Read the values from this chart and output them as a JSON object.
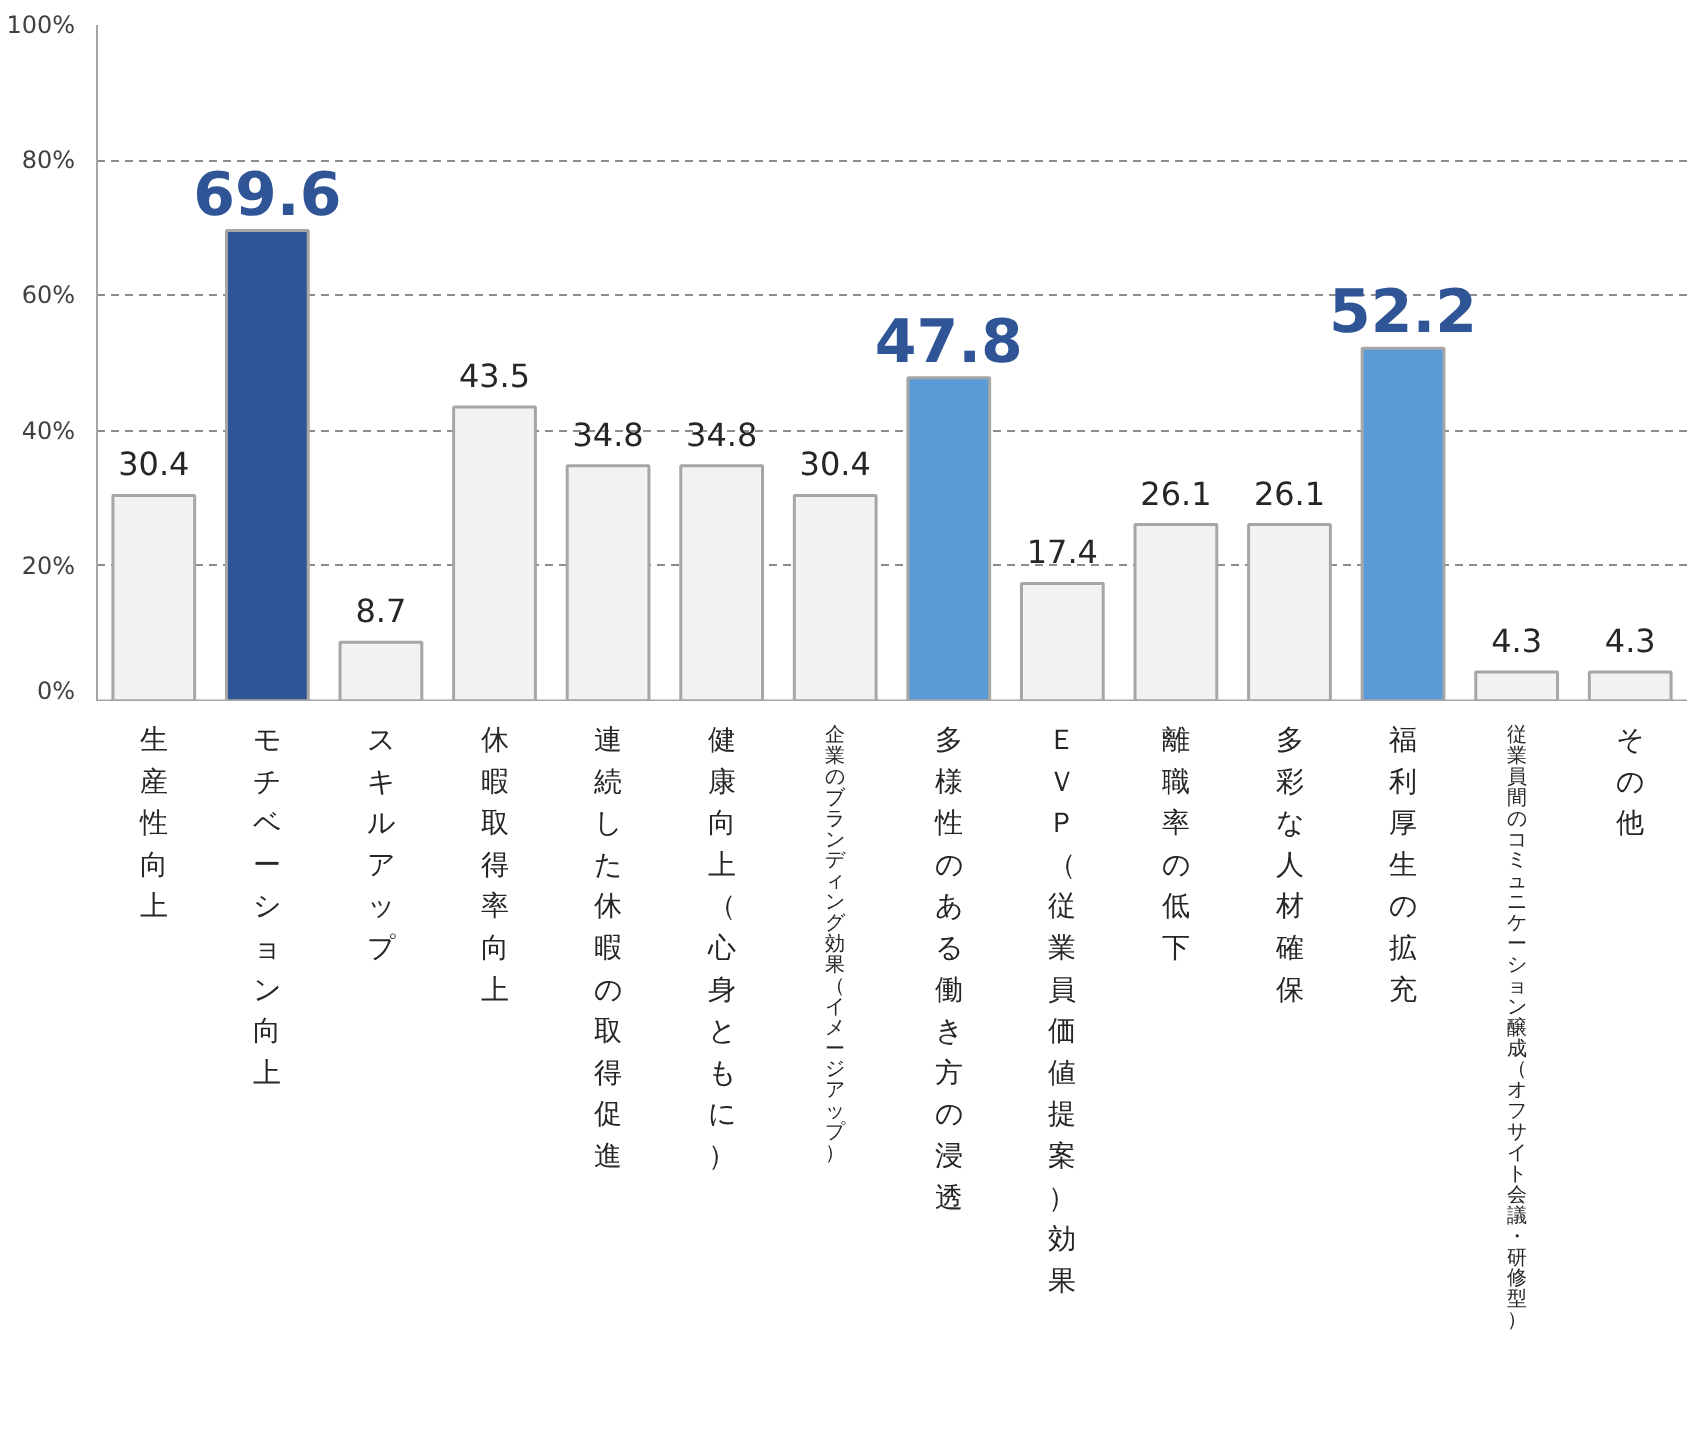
{
  "chart_data": {
    "type": "bar",
    "categories": [
      "生産性向上",
      "モチベーション向上",
      "スキルアップ",
      "休暇取得率向上",
      "連続した休暇の取得促進",
      "健康向上（心身ともに）",
      "企業のブランディング効果（イメージアップ）",
      "多様性のある働き方の浸透",
      "ＥＶＰ（従業員価値提案）効果",
      "離職率の低下",
      "多彩な人材確保",
      "福利厚生の拡充",
      "従業員間のコミュニケーション醸成（オフサイト会議・研修型）",
      "その他"
    ],
    "values": [
      30.4,
      69.6,
      8.7,
      43.5,
      34.8,
      34.8,
      30.4,
      47.8,
      17.4,
      26.1,
      26.1,
      52.2,
      4.3,
      4.3
    ],
    "colors": [
      "#f2f2f2",
      "#2f5597",
      "#f2f2f2",
      "#f2f2f2",
      "#f2f2f2",
      "#f2f2f2",
      "#f2f2f2",
      "#5b9bd5",
      "#f2f2f2",
      "#f2f2f2",
      "#f2f2f2",
      "#5b9bd5",
      "#f2f2f2",
      "#f2f2f2"
    ],
    "ylim": [
      0,
      100
    ],
    "yticks": [
      {
        "value": 0,
        "label": "0%"
      },
      {
        "value": 20,
        "label": "20%"
      },
      {
        "value": 40,
        "label": "40%"
      },
      {
        "value": 60,
        "label": "60%"
      },
      {
        "value": 80,
        "label": "80%"
      },
      {
        "value": 100,
        "label": "100%"
      }
    ],
    "grid": "y",
    "data_labels": true
  }
}
